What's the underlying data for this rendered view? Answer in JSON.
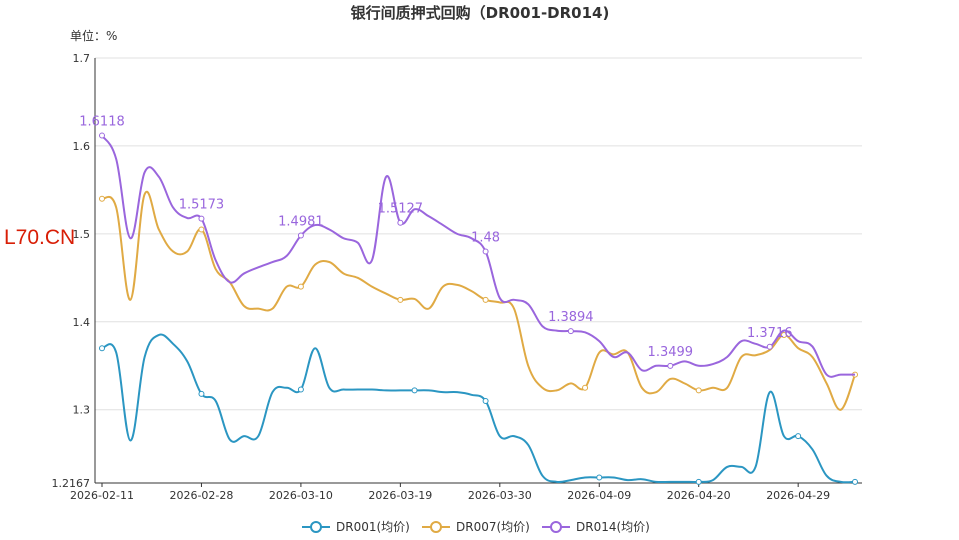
{
  "watermark": "L70.CN",
  "chart_data": {
    "type": "line",
    "title": "银行间质押式回购（DR001-DR014)",
    "unit_label": "单位：%",
    "y_ticks": [
      "1.7",
      "1.6",
      "1.5",
      "1.4",
      "1.3",
      "1.2167"
    ],
    "ylim": [
      1.2167,
      1.7
    ],
    "x_ticks": [
      "2026-02-11",
      "2026-02-28",
      "2026-03-10",
      "2026-03-19",
      "2026-03-30",
      "2026-04-09",
      "2026-04-20",
      "2026-04-29"
    ],
    "grid": "horizontal",
    "legend_position": "bottom-center",
    "series": [
      {
        "name": "DR001(均价)",
        "color": "#2b96c2",
        "values": [
          1.37,
          1.365,
          1.265,
          1.36,
          1.385,
          1.375,
          1.355,
          1.318,
          1.31,
          1.266,
          1.27,
          1.27,
          1.32,
          1.325,
          1.323,
          1.37,
          1.325,
          1.323,
          1.323,
          1.323,
          1.322,
          1.322,
          1.322,
          1.322,
          1.32,
          1.32,
          1.317,
          1.31,
          1.27,
          1.27,
          1.26,
          1.225,
          1.218,
          1.22,
          1.223,
          1.223,
          1.223,
          1.22,
          1.221,
          1.218,
          1.218,
          1.218,
          1.218,
          1.22,
          1.235,
          1.235,
          1.235,
          1.32,
          1.27,
          1.27,
          1.255,
          1.225,
          1.218,
          1.218
        ],
        "markers": [
          0,
          7,
          14,
          22,
          27,
          35,
          42,
          49,
          53
        ]
      },
      {
        "name": "DR007(均价)",
        "color": "#e0aa44",
        "values": [
          1.54,
          1.53,
          1.425,
          1.545,
          1.505,
          1.48,
          1.48,
          1.505,
          1.46,
          1.445,
          1.418,
          1.415,
          1.415,
          1.44,
          1.44,
          1.465,
          1.468,
          1.455,
          1.45,
          1.44,
          1.432,
          1.425,
          1.426,
          1.415,
          1.44,
          1.442,
          1.435,
          1.425,
          1.422,
          1.415,
          1.35,
          1.325,
          1.322,
          1.33,
          1.325,
          1.365,
          1.363,
          1.365,
          1.325,
          1.32,
          1.335,
          1.33,
          1.322,
          1.325,
          1.325,
          1.36,
          1.362,
          1.368,
          1.385,
          1.37,
          1.36,
          1.33,
          1.3,
          1.34
        ],
        "markers": [
          0,
          7,
          14,
          21,
          27,
          34,
          42,
          48,
          53
        ]
      },
      {
        "name": "DR014(均价)",
        "color": "#9a66dd",
        "values": [
          1.6118,
          1.585,
          1.495,
          1.57,
          1.565,
          1.53,
          1.518,
          1.5173,
          1.47,
          1.445,
          1.455,
          1.462,
          1.468,
          1.475,
          1.4981,
          1.51,
          1.505,
          1.495,
          1.49,
          1.47,
          1.565,
          1.5127,
          1.528,
          1.52,
          1.51,
          1.5,
          1.495,
          1.48,
          1.427,
          1.425,
          1.42,
          1.395,
          1.39,
          1.3894,
          1.388,
          1.378,
          1.36,
          1.365,
          1.345,
          1.35,
          1.3499,
          1.355,
          1.35,
          1.352,
          1.36,
          1.378,
          1.375,
          1.3716,
          1.39,
          1.378,
          1.372,
          1.34,
          1.34,
          1.34
        ],
        "markers": [
          0,
          7,
          14,
          21,
          27,
          33,
          40,
          47
        ],
        "labeled": [
          0,
          7,
          14,
          21,
          27,
          33,
          40,
          47
        ],
        "labels": [
          "1.6118",
          "1.5173",
          "1.4981",
          "1.5127",
          "1.48",
          "1.3894",
          "1.3499",
          "1.3716"
        ]
      }
    ]
  }
}
